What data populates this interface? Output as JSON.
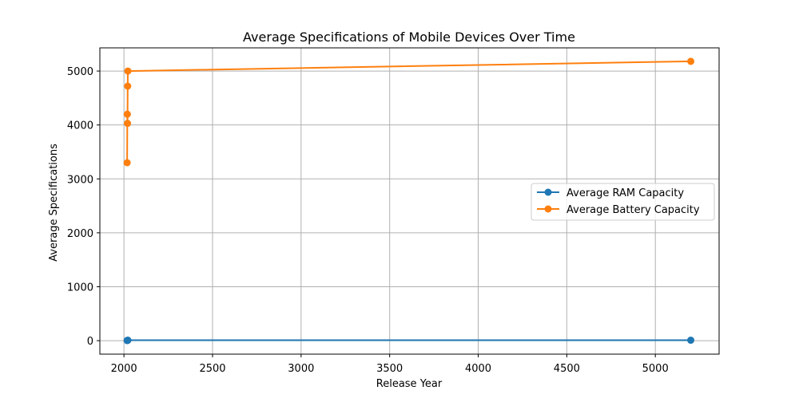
{
  "chart_data": {
    "type": "line",
    "title": "Average Specifications of Mobile Devices Over Time",
    "xlabel": "Release Year",
    "ylabel": "Average Specifications",
    "xlim": [
      1864,
      5360
    ],
    "ylim": [
      -250,
      5430
    ],
    "grid": true,
    "legend_position": "center-right",
    "x_ticks": [
      2000,
      2500,
      3000,
      3500,
      4000,
      4500,
      5000
    ],
    "x_tick_labels": [
      "2000",
      "2500",
      "3000",
      "3500",
      "4000",
      "4500",
      "5000"
    ],
    "y_ticks": [
      0,
      1000,
      2000,
      3000,
      4000,
      5000
    ],
    "y_tick_labels": [
      "0",
      "1000",
      "2000",
      "3000",
      "4000",
      "5000"
    ],
    "series": [
      {
        "name": "Average RAM Capacity",
        "color": "#1f77b4",
        "x": [
          2018,
          2019,
          2020,
          2021,
          2022,
          5200
        ],
        "y": [
          3,
          4,
          6,
          7,
          8,
          8
        ]
      },
      {
        "name": "Average Battery Capacity",
        "color": "#ff7f0e",
        "x": [
          2018,
          2019,
          2020,
          2021,
          2022,
          5200
        ],
        "y": [
          3300,
          4200,
          4030,
          4720,
          5000,
          5180
        ]
      }
    ]
  }
}
